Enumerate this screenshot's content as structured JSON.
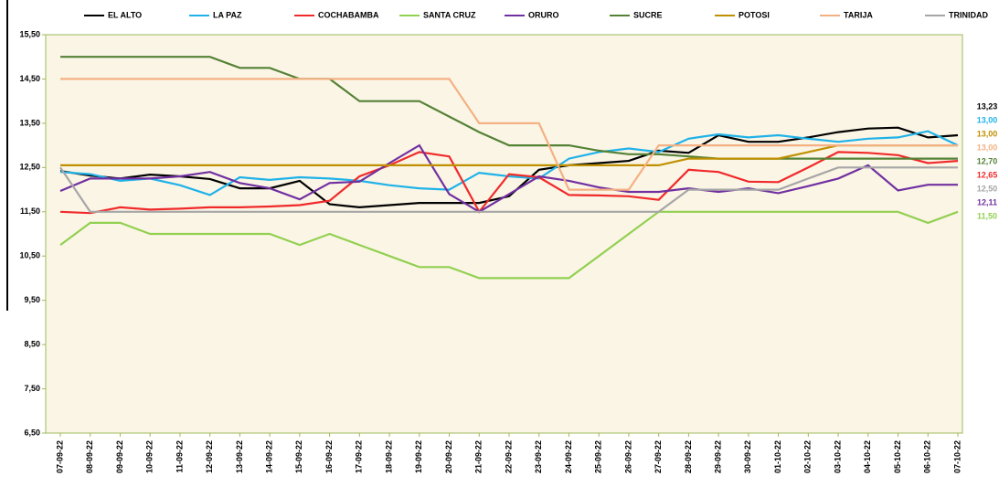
{
  "chart_data": {
    "type": "line",
    "categories": [
      "07-09-22",
      "08-09-22",
      "09-09-22",
      "10-09-22",
      "11-09-22",
      "12-09-22",
      "13-09-22",
      "14-09-22",
      "15-09-22",
      "16-09-22",
      "17-09-22",
      "18-09-22",
      "19-09-22",
      "20-09-22",
      "21-09-22",
      "22-09-22",
      "23-09-22",
      "24-09-22",
      "25-09-22",
      "26-09-22",
      "27-09-22",
      "28-09-22",
      "29-09-22",
      "30-09-22",
      "01-10-22",
      "02-10-22",
      "03-10-22",
      "04-10-22",
      "05-10-22",
      "06-10-22",
      "07-10-22"
    ],
    "ylim": [
      6.5,
      15.5
    ],
    "yticks": [
      {
        "value": 6.5,
        "label": "6,50"
      },
      {
        "value": 7.5,
        "label": "7,50"
      },
      {
        "value": 8.5,
        "label": "8,50"
      },
      {
        "value": 9.5,
        "label": "9,50"
      },
      {
        "value": 10.5,
        "label": "10,50"
      },
      {
        "value": 11.5,
        "label": "11,50"
      },
      {
        "value": 12.5,
        "label": "12,50"
      },
      {
        "value": 13.5,
        "label": "13,50"
      },
      {
        "value": 14.5,
        "label": "14,50"
      },
      {
        "value": 15.5,
        "label": "15,50"
      }
    ],
    "grid": false,
    "legend": "top",
    "series": [
      {
        "name": "EL ALTO",
        "color": "#000000",
        "end_label": "13,23",
        "values": [
          12.42,
          12.32,
          12.25,
          12.34,
          12.3,
          12.24,
          12.03,
          12.03,
          12.2,
          11.67,
          11.6,
          11.65,
          11.7,
          11.7,
          11.7,
          11.85,
          12.45,
          12.55,
          12.6,
          12.65,
          12.88,
          12.83,
          13.23,
          13.08,
          13.08,
          13.18,
          13.3,
          13.38,
          13.4,
          13.18,
          13.23
        ]
      },
      {
        "name": "LA PAZ",
        "color": "#1fb2e8",
        "end_label": "13,00",
        "values": [
          12.4,
          12.35,
          12.2,
          12.25,
          12.1,
          11.88,
          12.28,
          12.22,
          12.28,
          12.25,
          12.2,
          12.1,
          12.03,
          12.0,
          12.38,
          12.3,
          12.25,
          12.7,
          12.85,
          12.93,
          12.85,
          13.15,
          13.25,
          13.18,
          13.23,
          13.15,
          13.08,
          13.15,
          13.18,
          13.32,
          13.0
        ]
      },
      {
        "name": "COCHABAMBA",
        "color": "#f02a2a",
        "end_label": "12,65",
        "values": [
          11.5,
          11.47,
          11.6,
          11.55,
          11.57,
          11.6,
          11.6,
          11.62,
          11.65,
          11.75,
          12.3,
          12.55,
          12.85,
          12.75,
          11.5,
          12.35,
          12.28,
          11.88,
          11.87,
          11.85,
          11.77,
          12.45,
          12.4,
          12.18,
          12.17,
          12.5,
          12.85,
          12.83,
          12.78,
          12.6,
          12.65
        ]
      },
      {
        "name": "SANTA CRUZ",
        "color": "#92d050",
        "end_label": "11,50",
        "values": [
          10.75,
          11.25,
          11.25,
          11.0,
          11.0,
          11.0,
          11.0,
          11.0,
          10.75,
          11.0,
          10.75,
          10.5,
          10.25,
          10.25,
          10.0,
          10.0,
          10.0,
          10.0,
          10.5,
          11.0,
          11.5,
          11.5,
          11.5,
          11.5,
          11.5,
          11.5,
          11.5,
          11.5,
          11.5,
          11.25,
          11.5
        ]
      },
      {
        "name": "ORURO",
        "color": "#7030a0",
        "end_label": "12,11",
        "values": [
          11.97,
          12.25,
          12.25,
          12.25,
          12.3,
          12.4,
          12.15,
          12.03,
          11.78,
          12.15,
          12.18,
          12.6,
          13.0,
          11.9,
          11.5,
          11.9,
          12.3,
          12.2,
          12.05,
          11.95,
          11.95,
          12.03,
          11.95,
          12.03,
          11.92,
          12.08,
          12.25,
          12.55,
          11.98,
          12.11,
          12.11
        ]
      },
      {
        "name": "SUCRE",
        "color": "#548235",
        "end_label": "12,70",
        "values": [
          15.0,
          15.0,
          15.0,
          15.0,
          15.0,
          15.0,
          14.75,
          14.75,
          14.5,
          14.5,
          14.0,
          14.0,
          14.0,
          13.65,
          13.3,
          13.0,
          13.0,
          13.0,
          12.88,
          12.8,
          12.8,
          12.75,
          12.7,
          12.7,
          12.7,
          12.7,
          12.7,
          12.7,
          12.7,
          12.7,
          12.7
        ]
      },
      {
        "name": "POTOSI",
        "color": "#bf9000",
        "end_label": "13,00",
        "values": [
          12.55,
          12.55,
          12.55,
          12.55,
          12.55,
          12.55,
          12.55,
          12.55,
          12.55,
          12.55,
          12.55,
          12.55,
          12.55,
          12.55,
          12.55,
          12.55,
          12.55,
          12.55,
          12.55,
          12.55,
          12.55,
          12.7,
          12.7,
          12.7,
          12.7,
          12.85,
          13.0,
          13.0,
          13.0,
          13.0,
          13.0
        ]
      },
      {
        "name": "TARIJA",
        "color": "#f4b183",
        "end_label": "13,00",
        "values": [
          14.5,
          14.5,
          14.5,
          14.5,
          14.5,
          14.5,
          14.5,
          14.5,
          14.5,
          14.5,
          14.5,
          14.5,
          14.5,
          14.5,
          13.5,
          13.5,
          13.5,
          12.0,
          12.0,
          12.0,
          13.0,
          13.0,
          13.0,
          13.0,
          13.0,
          13.0,
          13.0,
          13.0,
          13.0,
          13.0,
          13.0
        ]
      },
      {
        "name": "TRINIDAD",
        "color": "#a6a6a6",
        "end_label": "12,50",
        "values": [
          12.5,
          11.5,
          11.5,
          11.5,
          11.5,
          11.5,
          11.5,
          11.5,
          11.5,
          11.5,
          11.5,
          11.5,
          11.5,
          11.5,
          11.5,
          11.5,
          11.5,
          11.5,
          11.5,
          11.5,
          11.5,
          12.0,
          12.0,
          12.0,
          12.0,
          12.25,
          12.5,
          12.5,
          12.5,
          12.5,
          12.5
        ]
      }
    ]
  }
}
